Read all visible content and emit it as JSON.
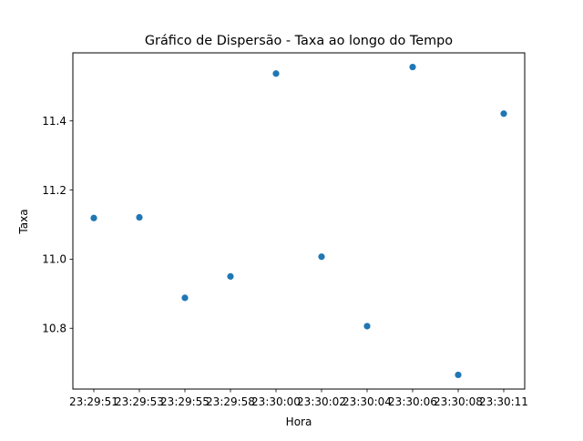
{
  "chart_data": {
    "type": "scatter",
    "title": "Gráfico de Dispersão - Taxa ao longo do Tempo",
    "xlabel": "Hora",
    "ylabel": "Taxa",
    "categories": [
      "23:29:51",
      "23:29:53",
      "23:29:55",
      "23:29:58",
      "23:30:00",
      "23:30:02",
      "23:30:04",
      "23:30:06",
      "23:30:08",
      "23:30:11"
    ],
    "values": [
      11.119,
      11.121,
      10.888,
      10.95,
      11.537,
      11.007,
      10.806,
      11.556,
      10.665,
      11.421
    ],
    "ylim": [
      10.624,
      11.597
    ],
    "yticks": [
      10.8,
      11.0,
      11.2,
      11.4
    ],
    "ytick_labels": [
      "10.8",
      "11.0",
      "11.2",
      "11.4"
    ],
    "grid": false,
    "marker_color": "#1f77b4"
  }
}
